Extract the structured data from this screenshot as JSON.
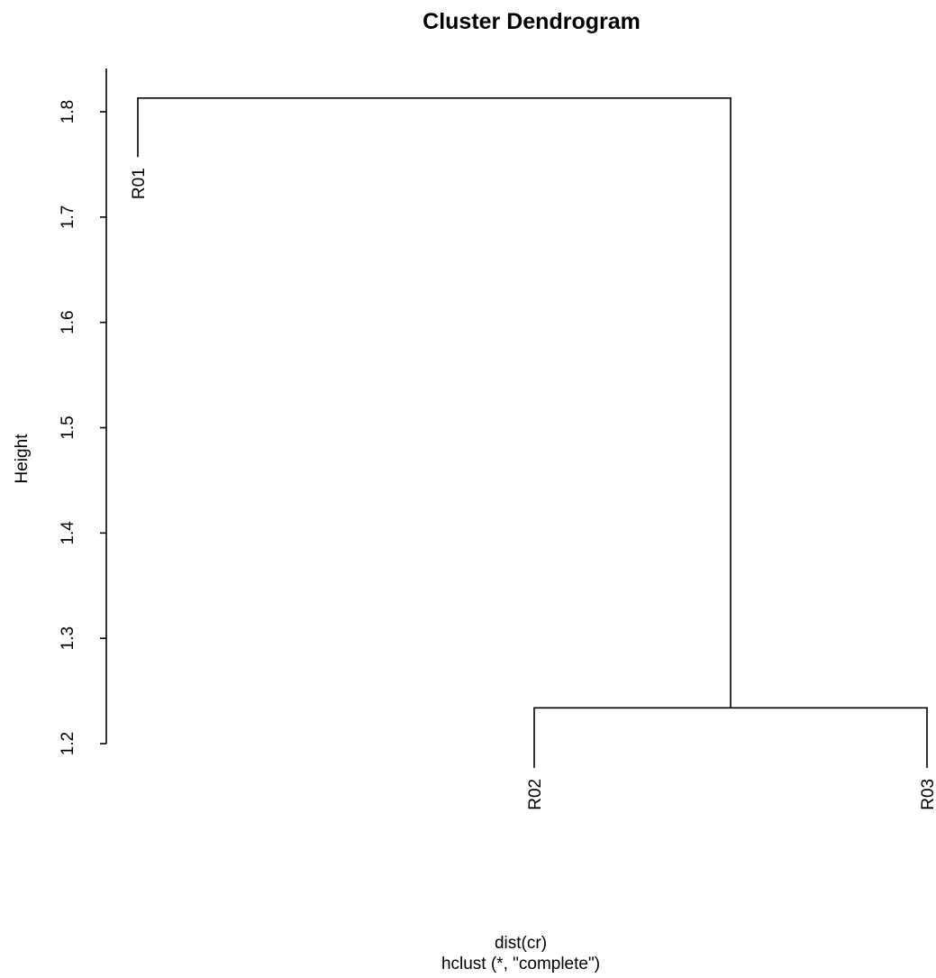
{
  "chart_data": {
    "type": "dendrogram",
    "title": "Cluster Dendrogram",
    "ylabel": "Height",
    "xlabel": "dist(cr)",
    "sub": "hclust (*, \"complete\")",
    "ylim": [
      1.2,
      1.8
    ],
    "yticks": [
      1.2,
      1.3,
      1.4,
      1.5,
      1.6,
      1.7,
      1.8
    ],
    "ytick_labels": [
      "1.2",
      "1.3",
      "1.4",
      "1.5",
      "1.6",
      "1.7",
      "1.8"
    ],
    "leaves": [
      "R01",
      "R02",
      "R03"
    ],
    "leaf_tips": [
      1.757,
      1.2,
      1.2
    ],
    "merges": [
      {
        "members": [
          "R02",
          "R03"
        ],
        "height": 1.234
      },
      {
        "members": [
          "R01",
          "R02+R03"
        ],
        "height": 1.813
      }
    ]
  }
}
